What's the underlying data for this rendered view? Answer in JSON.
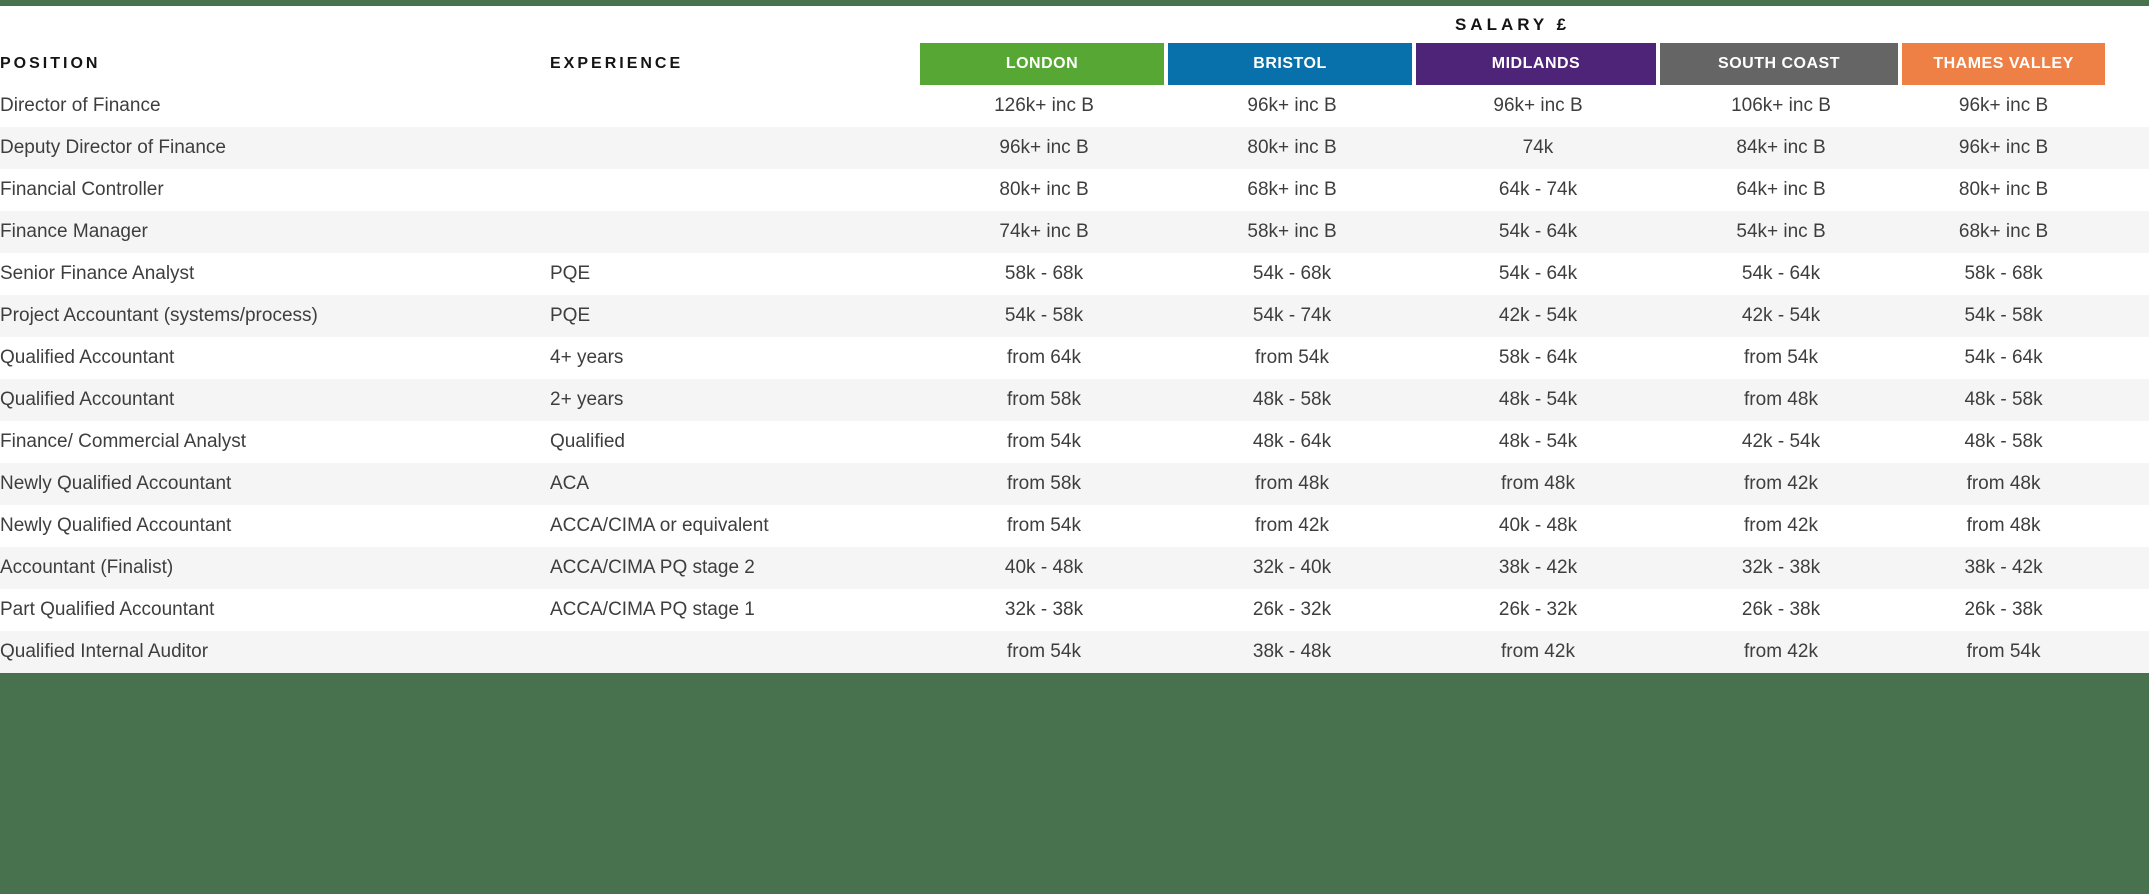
{
  "colors": {
    "band_green": "#48714E",
    "row_stripe": "#f5f5f5",
    "body_text": "#3e3e3e",
    "header_text": "#141414"
  },
  "table": {
    "salary_header": "SALARY £",
    "columns": {
      "position": "POSITION",
      "experience": "EXPERIENCE"
    },
    "regions": [
      {
        "label": "LONDON",
        "color": "#56A733"
      },
      {
        "label": "BRISTOL",
        "color": "#0871AC"
      },
      {
        "label": "MIDLANDS",
        "color": "#4E2478"
      },
      {
        "label": "SOUTH COAST",
        "color": "#656565"
      },
      {
        "label": "THAMES VALLEY",
        "color": "#EE8046"
      }
    ],
    "rows": [
      {
        "position": "Director of Finance",
        "experience": "",
        "salaries": [
          "126k+ inc B",
          "96k+ inc B",
          "96k+ inc B",
          "106k+ inc B",
          "96k+ inc B"
        ]
      },
      {
        "position": "Deputy Director of Finance",
        "experience": "",
        "salaries": [
          "96k+ inc B",
          "80k+ inc B",
          "74k",
          "84k+ inc B",
          "96k+ inc B"
        ]
      },
      {
        "position": "Financial Controller",
        "experience": "",
        "salaries": [
          "80k+ inc B",
          "68k+ inc B",
          "64k - 74k",
          "64k+ inc B",
          "80k+ inc B"
        ]
      },
      {
        "position": "Finance Manager",
        "experience": "",
        "salaries": [
          "74k+ inc B",
          "58k+ inc B",
          "54k - 64k",
          "54k+ inc B",
          "68k+ inc B"
        ]
      },
      {
        "position": "Senior Finance Analyst",
        "experience": "PQE",
        "salaries": [
          "58k - 68k",
          "54k - 68k",
          "54k - 64k",
          "54k - 64k",
          "58k - 68k"
        ]
      },
      {
        "position": "Project Accountant (systems/process)",
        "experience": "PQE",
        "salaries": [
          "54k - 58k",
          "54k - 74k",
          "42k - 54k",
          "42k - 54k",
          "54k - 58k"
        ]
      },
      {
        "position": "Qualified Accountant",
        "experience": "4+ years",
        "salaries": [
          "from 64k",
          "from 54k",
          "58k - 64k",
          "from 54k",
          "54k - 64k"
        ]
      },
      {
        "position": "Qualified Accountant",
        "experience": "2+ years",
        "salaries": [
          "from 58k",
          "48k - 58k",
          "48k - 54k",
          "from 48k",
          "48k - 58k"
        ]
      },
      {
        "position": "Finance/ Commercial Analyst",
        "experience": "Qualified",
        "salaries": [
          "from 54k",
          "48k - 64k",
          "48k - 54k",
          "42k - 54k",
          "48k - 58k"
        ]
      },
      {
        "position": "Newly Qualified Accountant",
        "experience": "ACA",
        "salaries": [
          "from 58k",
          "from 48k",
          "from 48k",
          "from 42k",
          "from 48k"
        ]
      },
      {
        "position": "Newly Qualified Accountant",
        "experience": "ACCA/CIMA or equivalent",
        "salaries": [
          "from 54k",
          "from 42k",
          "40k - 48k",
          "from 42k",
          "from 48k"
        ]
      },
      {
        "position": "Accountant (Finalist)",
        "experience": "ACCA/CIMA PQ stage 2",
        "salaries": [
          "40k - 48k",
          "32k - 40k",
          "38k - 42k",
          "32k - 38k",
          "38k - 42k"
        ]
      },
      {
        "position": "Part Qualified Accountant",
        "experience": "ACCA/CIMA PQ stage 1",
        "salaries": [
          "32k - 38k",
          "26k - 32k",
          "26k - 32k",
          "26k - 38k",
          "26k - 38k"
        ]
      },
      {
        "position": "Qualified Internal Auditor",
        "experience": "",
        "salaries": [
          "from 54k",
          "38k - 48k",
          "from 42k",
          "from 42k",
          "from 54k"
        ]
      }
    ]
  }
}
